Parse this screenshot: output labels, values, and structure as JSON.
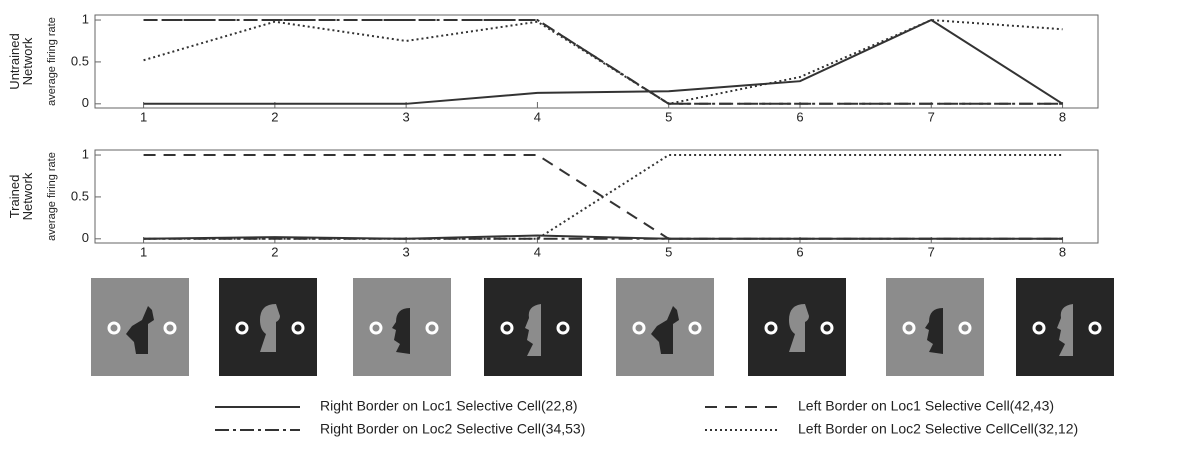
{
  "chart_data": [
    {
      "type": "line",
      "group_label": "Untrained Network",
      "ylabel": "average firing rate",
      "x": [
        1,
        2,
        3,
        4,
        5,
        6,
        7,
        8
      ],
      "xlim": [
        0.63,
        8.27
      ],
      "xticks": [
        1,
        2,
        3,
        4,
        5,
        6,
        7,
        8
      ],
      "ylim": [
        -0.05,
        1.06
      ],
      "yticks": [
        0,
        0.5,
        1
      ],
      "series": [
        {
          "name": "Right Border on Loc1 Selective Cell(22,8)",
          "color": "#333333",
          "line_style": "solid",
          "values": [
            0,
            0,
            0,
            0.13,
            0.15,
            0.27,
            1,
            0
          ]
        },
        {
          "name": "Right Border on Loc2 Selective Cell(34,53)",
          "color": "#333333",
          "line_style": "dashdot",
          "values": [
            1,
            1,
            1,
            1,
            0,
            0,
            0,
            0
          ]
        },
        {
          "name": "Left Border on Loc1 Selective Cell(42,43)",
          "color": "#333333",
          "line_style": "dashed",
          "values": [
            1,
            1,
            1,
            1,
            0,
            0,
            0,
            0
          ]
        },
        {
          "name": "Left Border on Loc2 Selective CellCell(32,12)",
          "color": "#333333",
          "line_style": "dotted",
          "values": [
            0.52,
            0.98,
            0.75,
            0.98,
            0,
            0.32,
            1,
            0.89
          ]
        }
      ]
    },
    {
      "type": "line",
      "group_label": "Trained Network",
      "ylabel": "average firing rate",
      "x": [
        1,
        2,
        3,
        4,
        5,
        6,
        7,
        8
      ],
      "xlim": [
        0.63,
        8.27
      ],
      "xticks": [
        1,
        2,
        3,
        4,
        5,
        6,
        7,
        8
      ],
      "ylim": [
        -0.05,
        1.06
      ],
      "yticks": [
        0,
        0.5,
        1
      ],
      "series": [
        {
          "color": "#333333",
          "line_style": "solid",
          "values": [
            0,
            0.02,
            0,
            0.04,
            0,
            0,
            0,
            0
          ]
        },
        {
          "color": "#333333",
          "line_style": "dashdot",
          "values": [
            0,
            0,
            0,
            0,
            0,
            0,
            0,
            0
          ]
        },
        {
          "color": "#333333",
          "line_style": "dashed",
          "values": [
            1,
            1,
            1,
            1,
            0,
            0,
            0,
            0
          ]
        },
        {
          "color": "#333333",
          "line_style": "dotted",
          "values": [
            0,
            0,
            0,
            0,
            1,
            1,
            1,
            1
          ]
        }
      ]
    }
  ]
}
